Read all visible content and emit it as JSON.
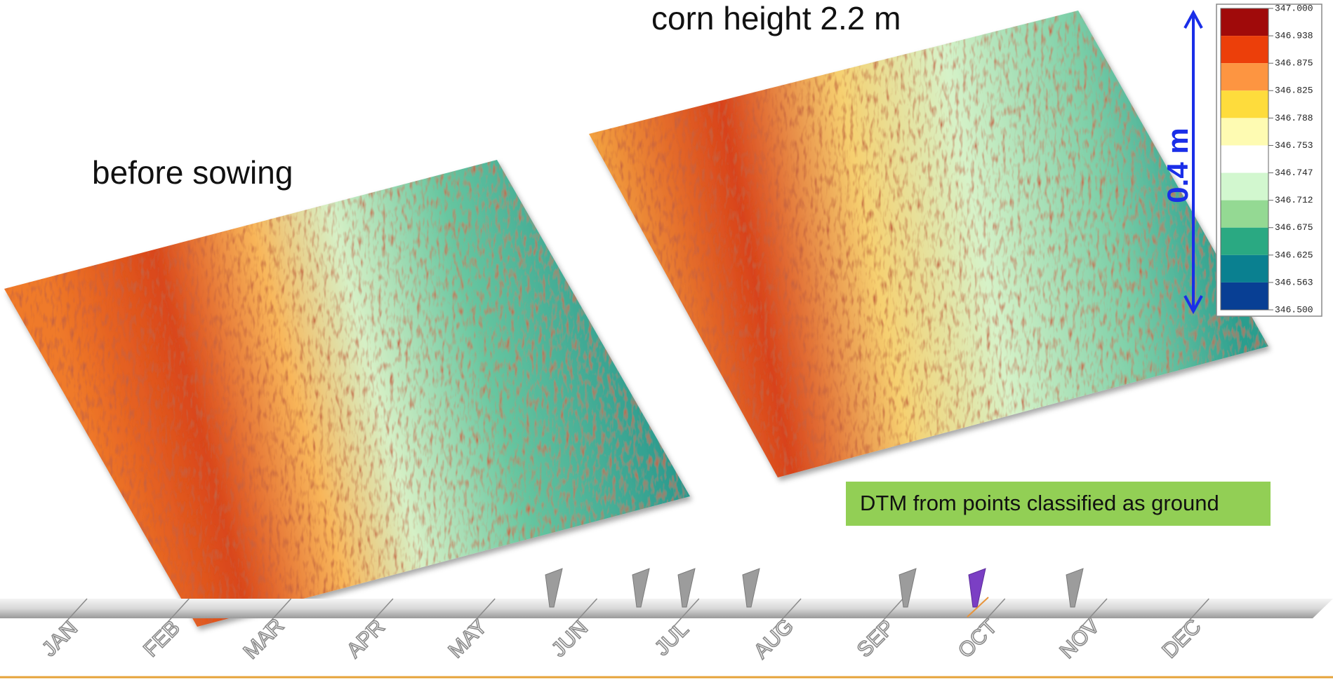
{
  "panels": [
    {
      "label": "before sowing"
    },
    {
      "label": "corn height 2.2 m"
    }
  ],
  "scale_annotation": "0.4 m",
  "note": "DTM from points classified as ground",
  "legend": {
    "labels": [
      "347.000",
      "346.938",
      "346.875",
      "346.825",
      "346.788",
      "346.753",
      "346.747",
      "346.712",
      "346.675",
      "346.625",
      "346.563",
      "346.500"
    ],
    "colors": [
      "#a00a0a",
      "#ec3f0a",
      "#fd9541",
      "#fedc3c",
      "#fefbb2",
      "#ffffff",
      "#d2f7cf",
      "#94d993",
      "#2aa982",
      "#0a8090",
      "#083f94"
    ]
  },
  "timeline": {
    "months": [
      "JAN",
      "FEB",
      "MAR",
      "APR",
      "MAY",
      "JUN",
      "JUL",
      "AUG",
      "SEP",
      "OCT",
      "NOV",
      "DEC"
    ]
  }
}
